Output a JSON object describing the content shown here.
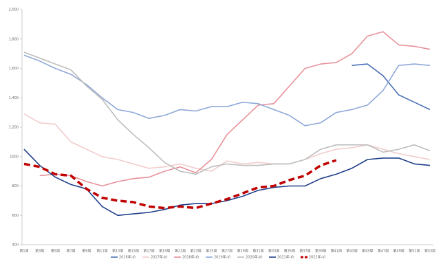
{
  "chart_data": {
    "type": "line",
    "categories": [
      "第1周",
      "第3周",
      "第5周",
      "第7周",
      "第9周",
      "第11周",
      "第13周",
      "第15周",
      "第17周",
      "第19周",
      "第21周",
      "第23周",
      "第25周",
      "第27周",
      "第29周",
      "第31周",
      "第33周",
      "第35周",
      "第37周",
      "第39周",
      "第41周",
      "第43周",
      "第45周",
      "第47周",
      "第49周",
      "第51周",
      "第53周"
    ],
    "ylim": [
      400,
      2000
    ],
    "yticks": [
      400,
      600,
      800,
      1000,
      {
        "value": 1200,
        "label": "1,200"
      },
      {
        "value": 1400,
        "label": "1,400"
      },
      {
        "value": 1600,
        "label": "1,600"
      },
      {
        "value": 1800,
        "label": "1,800"
      },
      {
        "value": 2000,
        "label": "2,000"
      }
    ],
    "grid": false,
    "legend": "bottom",
    "series": [
      {
        "name": "2016年-价",
        "color": "#4a6fb5",
        "dashed": false,
        "values": [
          null,
          null,
          null,
          null,
          null,
          null,
          null,
          null,
          null,
          null,
          null,
          null,
          null,
          null,
          null,
          null,
          null,
          null,
          null,
          null,
          null,
          1620,
          1630,
          1550,
          1420,
          1370,
          1320
        ]
      },
      {
        "name": "2017年-价",
        "color": "#f2cccc",
        "dashed": false,
        "values": [
          1290,
          1230,
          1220,
          1100,
          1050,
          1000,
          980,
          950,
          920,
          930,
          950,
          920,
          900,
          970,
          950,
          960,
          950,
          950,
          980,
          1020,
          1050,
          1060,
          1080,
          1050,
          1020,
          1000,
          980
        ]
      },
      {
        "name": "2018年-价",
        "color": "#e8909a",
        "dashed": false,
        "values": [
          null,
          870,
          880,
          870,
          830,
          800,
          830,
          850,
          860,
          900,
          930,
          890,
          980,
          1150,
          1250,
          1350,
          1360,
          1480,
          1600,
          1630,
          1640,
          1700,
          1820,
          1850,
          1760,
          1750,
          1730
        ]
      },
      {
        "name": "2019年-价",
        "color": "#8ea8d8",
        "dashed": false,
        "values": [
          1690,
          1650,
          1600,
          1560,
          1490,
          1400,
          1320,
          1300,
          1260,
          1280,
          1320,
          1310,
          1340,
          1340,
          1370,
          1360,
          1320,
          1280,
          1210,
          1230,
          1300,
          1320,
          1350,
          1450,
          1620,
          1630,
          1620
        ]
      },
      {
        "name": "2020年-价",
        "color": "#bdbdbd",
        "dashed": false,
        "values": [
          1710,
          1670,
          1630,
          1590,
          1480,
          1390,
          1250,
          1150,
          1060,
          960,
          900,
          880,
          930,
          950,
          940,
          940,
          950,
          950,
          980,
          1050,
          1080,
          1080,
          1080,
          1030,
          1050,
          1080,
          1040
        ]
      },
      {
        "name": "2021年-价",
        "color": "#1f3f8a",
        "dashed": false,
        "values": [
          1050,
          940,
          860,
          810,
          780,
          660,
          600,
          610,
          620,
          640,
          670,
          680,
          680,
          700,
          730,
          770,
          790,
          800,
          800,
          850,
          880,
          920,
          980,
          990,
          990,
          950,
          940
        ]
      },
      {
        "name": "2022年-价",
        "color": "#c00000",
        "dashed": true,
        "values": [
          950,
          930,
          880,
          870,
          780,
          720,
          700,
          690,
          660,
          650,
          660,
          650,
          680,
          710,
          750,
          790,
          800,
          840,
          870,
          940,
          975,
          null,
          null,
          null,
          null,
          null,
          null
        ]
      }
    ]
  }
}
